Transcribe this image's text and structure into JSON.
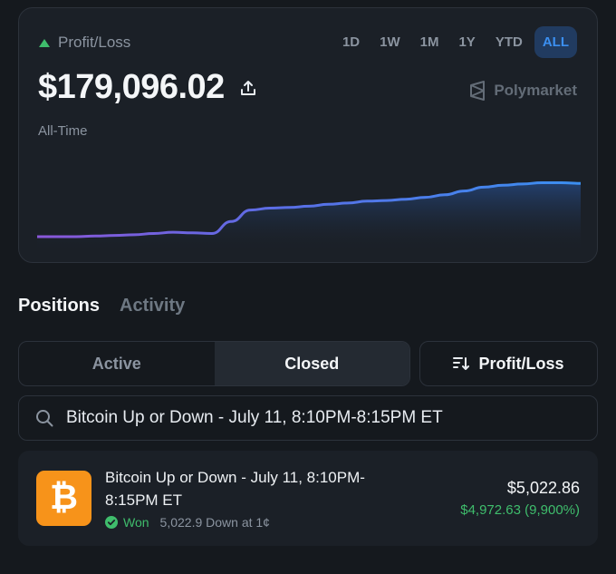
{
  "header": {
    "pl_label": "Profit/Loss",
    "ranges": [
      "1D",
      "1W",
      "1M",
      "1Y",
      "YTD",
      "ALL"
    ],
    "active_range": "ALL",
    "amount": "$179,096.02",
    "brand": "Polymarket",
    "period": "All-Time"
  },
  "chart_data": {
    "type": "area",
    "title": "",
    "xlabel": "",
    "ylabel": "",
    "grid": false,
    "values": [
      0.0,
      0.0,
      0.0,
      0.01,
      0.02,
      0.03,
      0.05,
      0.07,
      0.06,
      0.05,
      0.24,
      0.42,
      0.45,
      0.46,
      0.48,
      0.51,
      0.53,
      0.56,
      0.57,
      0.59,
      0.62,
      0.66,
      0.72,
      0.78,
      0.81,
      0.83,
      0.85,
      0.85,
      0.84
    ]
  },
  "tabs": [
    "Positions",
    "Activity"
  ],
  "segments": [
    "Active",
    "Closed"
  ],
  "active_segment": "Closed",
  "sort_label": "Profit/Loss",
  "search": {
    "value": "Bitcoin Up or Down - July 11, 8:10PM-8:15PM ET"
  },
  "position": {
    "icon": "bitcoin-icon",
    "title": "Bitcoin Up or Down - July 11, 8:10PM-8:15PM ET",
    "status": "Won",
    "detail": "5,022.9 Down at 1¢",
    "value": "$5,022.86",
    "pnl": "$4,972.63 (9,900%)"
  },
  "colors": {
    "accent": "#3b8ff0",
    "positive": "#3fbd6c",
    "line_start": "#8a57d8",
    "line_end": "#3b8ff0",
    "bitcoin": "#f7931a"
  }
}
